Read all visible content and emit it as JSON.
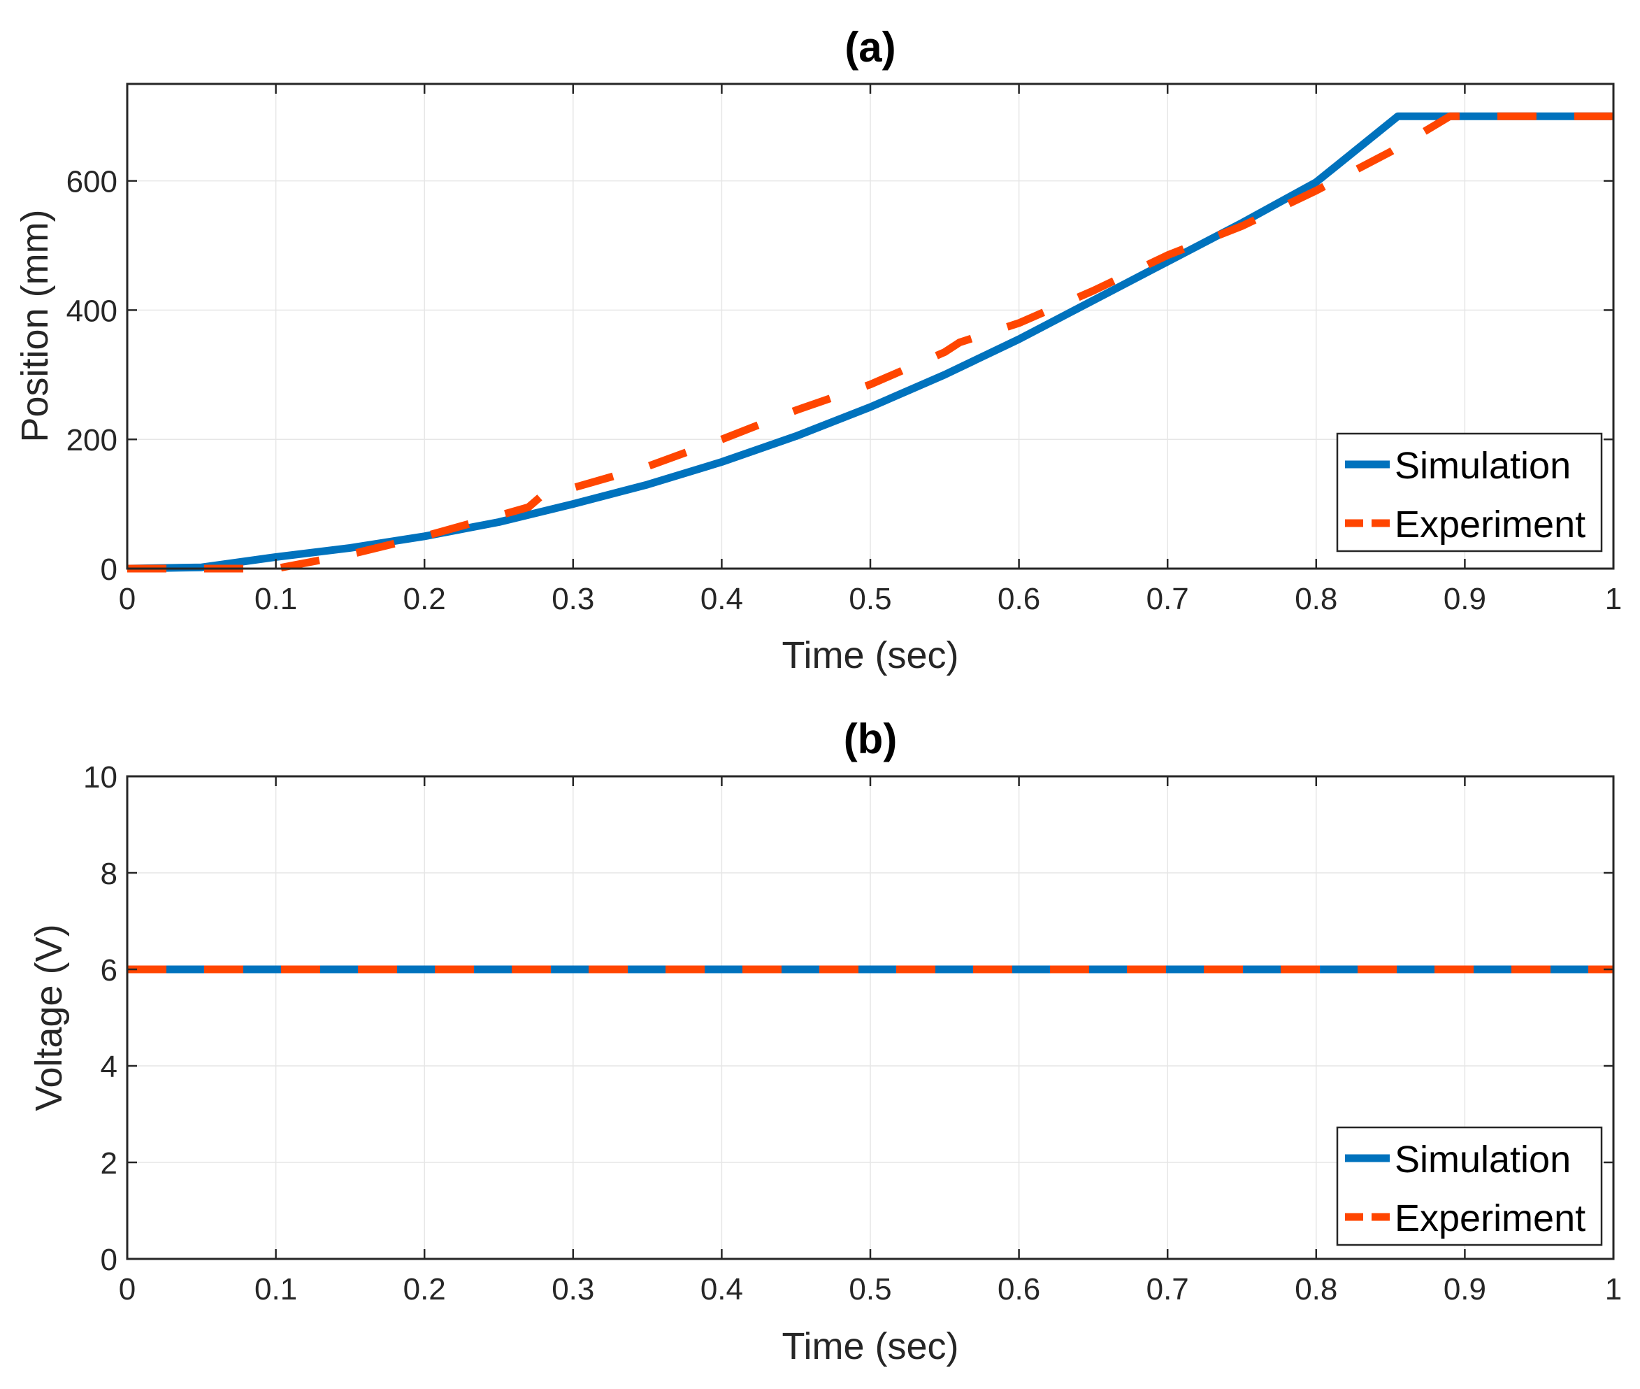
{
  "chart_data": [
    {
      "type": "line",
      "title": "(a)",
      "xlabel": "Time (sec)",
      "ylabel": "Position (mm)",
      "xlim": [
        0,
        1
      ],
      "ylim": [
        0,
        750
      ],
      "xticks": [
        0,
        0.1,
        0.2,
        0.3,
        0.4,
        0.5,
        0.6,
        0.7,
        0.8,
        0.9,
        1
      ],
      "xtick_labels": [
        "0",
        "0.1",
        "0.2",
        "0.3",
        "0.4",
        "0.5",
        "0.6",
        "0.7",
        "0.8",
        "0.9",
        "1"
      ],
      "yticks": [
        0,
        200,
        400,
        600
      ],
      "ytick_labels": [
        "0",
        "200",
        "400",
        "600"
      ],
      "grid": true,
      "legend_position": "bottom-right",
      "series": [
        {
          "name": "Simulation",
          "color": "#0072BD",
          "style": "solid",
          "x": [
            0,
            0.05,
            0.1,
            0.15,
            0.2,
            0.25,
            0.3,
            0.35,
            0.4,
            0.45,
            0.5,
            0.55,
            0.6,
            0.65,
            0.7,
            0.75,
            0.8,
            0.855,
            0.9,
            0.95,
            1
          ],
          "y": [
            0,
            2,
            18,
            32,
            50,
            72,
            100,
            130,
            165,
            205,
            250,
            300,
            355,
            415,
            475,
            535,
            598,
            700,
            700,
            700,
            700
          ]
        },
        {
          "name": "Experiment",
          "color": "#FF4500",
          "style": "dashed",
          "x": [
            0,
            0.05,
            0.1,
            0.15,
            0.2,
            0.25,
            0.27,
            0.28,
            0.3,
            0.35,
            0.4,
            0.45,
            0.5,
            0.55,
            0.56,
            0.6,
            0.65,
            0.7,
            0.75,
            0.8,
            0.85,
            0.89,
            0.95,
            1
          ],
          "y": [
            0,
            0,
            0,
            22,
            50,
            82,
            95,
            115,
            125,
            158,
            200,
            245,
            285,
            335,
            350,
            380,
            430,
            485,
            530,
            585,
            645,
            700,
            700,
            700
          ]
        }
      ]
    },
    {
      "type": "line",
      "title": "(b)",
      "xlabel": "Time (sec)",
      "ylabel": "Voltage (V)",
      "xlim": [
        0,
        1
      ],
      "ylim": [
        0,
        10
      ],
      "xticks": [
        0,
        0.1,
        0.2,
        0.3,
        0.4,
        0.5,
        0.6,
        0.7,
        0.8,
        0.9,
        1
      ],
      "xtick_labels": [
        "0",
        "0.1",
        "0.2",
        "0.3",
        "0.4",
        "0.5",
        "0.6",
        "0.7",
        "0.8",
        "0.9",
        "1"
      ],
      "yticks": [
        0,
        2,
        4,
        6,
        8,
        10
      ],
      "ytick_labels": [
        "0",
        "2",
        "4",
        "6",
        "8",
        "10"
      ],
      "grid": true,
      "legend_position": "bottom-right",
      "series": [
        {
          "name": "Simulation",
          "color": "#0072BD",
          "style": "solid",
          "x": [
            0,
            1
          ],
          "y": [
            6,
            6
          ]
        },
        {
          "name": "Experiment",
          "color": "#FF4500",
          "style": "dashed",
          "x": [
            0,
            1
          ],
          "y": [
            6,
            6
          ]
        }
      ]
    }
  ]
}
